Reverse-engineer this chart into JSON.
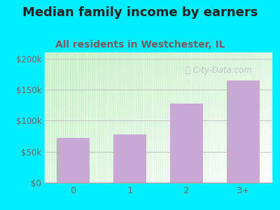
{
  "title": "Median family income by earners",
  "subtitle": "All residents in Westchester, IL",
  "categories": [
    "0",
    "1",
    "2",
    "3+"
  ],
  "values": [
    72000,
    78000,
    128000,
    165000
  ],
  "bar_color": "#c9a8d4",
  "background_outer": "#00eeff",
  "title_color": "#222222",
  "subtitle_color": "#7a5c5c",
  "axis_label_color": "#7a6060",
  "yticks": [
    0,
    50000,
    100000,
    150000,
    200000
  ],
  "ytick_labels": [
    "$0",
    "$50k",
    "$100k",
    "$150k",
    "$200k"
  ],
  "ylim": [
    0,
    210000
  ],
  "watermark": "City-Data.com",
  "title_fontsize": 13,
  "subtitle_fontsize": 10
}
